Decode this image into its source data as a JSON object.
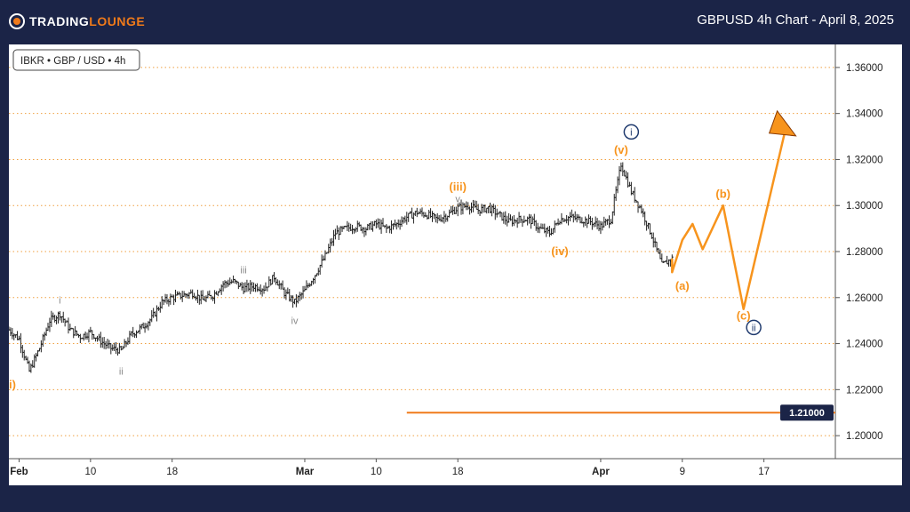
{
  "header": {
    "logo_text_main": "TRADING",
    "logo_text_accent": "LOUNGE",
    "chart_title": "GBPUSD 4h Chart - April 8, 2025"
  },
  "legend": {
    "symbol_label": "IBKR • GBP / USD • 4h"
  },
  "colors": {
    "background": "#1b2447",
    "accent_orange": "#f7941d",
    "navy": "#1f3a6e",
    "gray_label": "#8a8a8a",
    "candle": "#222222",
    "grid_dotted": "#f0a040"
  },
  "chart_data": {
    "type": "candlestick",
    "instrument": "GBPUSD",
    "timeframe": "4h",
    "ylim": [
      1.19,
      1.37
    ],
    "y_ticks": [
      "1.20000",
      "1.22000",
      "1.24000",
      "1.26000",
      "1.28000",
      "1.30000",
      "1.32000",
      "1.34000",
      "1.36000"
    ],
    "x_ticks": [
      "Feb",
      "10",
      "18",
      "Mar",
      "10",
      "18",
      "Apr",
      "9",
      "17"
    ],
    "x_tick_dates": [
      "2025-02-03",
      "2025-02-10",
      "2025-02-18",
      "2025-03-03",
      "2025-03-10",
      "2025-03-18",
      "2025-04-01",
      "2025-04-09",
      "2025-04-17"
    ],
    "xlim": [
      "2025-02-02",
      "2025-04-24"
    ],
    "grid": "horizontal dotted orange",
    "price_path": [
      [
        "2025-02-02",
        1.246
      ],
      [
        "2025-02-03",
        1.242
      ],
      [
        "2025-02-04",
        1.228
      ],
      [
        "2025-02-05",
        1.238
      ],
      [
        "2025-02-06",
        1.25
      ],
      [
        "2025-02-07",
        1.253
      ],
      [
        "2025-02-08",
        1.246
      ],
      [
        "2025-02-09",
        1.243
      ],
      [
        "2025-02-10",
        1.245
      ],
      [
        "2025-02-11",
        1.241
      ],
      [
        "2025-02-12",
        1.238
      ],
      [
        "2025-02-13",
        1.237
      ],
      [
        "2025-02-14",
        1.244
      ],
      [
        "2025-02-15",
        1.247
      ],
      [
        "2025-02-16",
        1.251
      ],
      [
        "2025-02-17",
        1.258
      ],
      [
        "2025-02-18",
        1.26
      ],
      [
        "2025-02-19",
        1.261
      ],
      [
        "2025-02-20",
        1.262
      ],
      [
        "2025-02-21",
        1.259
      ],
      [
        "2025-02-22",
        1.261
      ],
      [
        "2025-02-23",
        1.266
      ],
      [
        "2025-02-24",
        1.267
      ],
      [
        "2025-02-25",
        1.264
      ],
      [
        "2025-02-26",
        1.265
      ],
      [
        "2025-02-27",
        1.264
      ],
      [
        "2025-02-28",
        1.269
      ],
      [
        "2025-03-01",
        1.262
      ],
      [
        "2025-03-02",
        1.258
      ],
      [
        "2025-03-03",
        1.263
      ],
      [
        "2025-03-04",
        1.27
      ],
      [
        "2025-03-05",
        1.278
      ],
      [
        "2025-03-06",
        1.288
      ],
      [
        "2025-03-07",
        1.29
      ],
      [
        "2025-03-08",
        1.291
      ],
      [
        "2025-03-09",
        1.29
      ],
      [
        "2025-03-10",
        1.292
      ],
      [
        "2025-03-11",
        1.29
      ],
      [
        "2025-03-12",
        1.292
      ],
      [
        "2025-03-13",
        1.295
      ],
      [
        "2025-03-14",
        1.297
      ],
      [
        "2025-03-15",
        1.296
      ],
      [
        "2025-03-16",
        1.294
      ],
      [
        "2025-03-17",
        1.296
      ],
      [
        "2025-03-18",
        1.299
      ],
      [
        "2025-03-19",
        1.3
      ],
      [
        "2025-03-20",
        1.298
      ],
      [
        "2025-03-21",
        1.299
      ],
      [
        "2025-03-22",
        1.296
      ],
      [
        "2025-03-23",
        1.293
      ],
      [
        "2025-03-24",
        1.294
      ],
      [
        "2025-03-25",
        1.294
      ],
      [
        "2025-03-26",
        1.29
      ],
      [
        "2025-03-27",
        1.288
      ],
      [
        "2025-03-28",
        1.294
      ],
      [
        "2025-03-29",
        1.295
      ],
      [
        "2025-03-30",
        1.294
      ],
      [
        "2025-03-31",
        1.293
      ],
      [
        "2025-04-01",
        1.291
      ],
      [
        "2025-04-02",
        1.294
      ],
      [
        "2025-04-03",
        1.318
      ],
      [
        "2025-04-04",
        1.306
      ],
      [
        "2025-04-05",
        1.298
      ],
      [
        "2025-04-06",
        1.287
      ],
      [
        "2025-04-07",
        1.274
      ],
      [
        "2025-04-08",
        1.277
      ]
    ],
    "projection": {
      "color": "#f7941d",
      "path": [
        [
          "2025-04-08",
          1.277
        ],
        [
          "2025-04-08",
          1.271
        ],
        [
          "2025-04-09",
          1.285
        ],
        [
          "2025-04-10",
          1.292
        ],
        [
          "2025-04-11",
          1.281
        ],
        [
          "2025-04-13",
          1.3
        ],
        [
          "2025-04-15",
          1.255
        ],
        [
          "2025-04-19",
          1.331
        ]
      ],
      "arrow_target": [
        "2025-04-19",
        1.338
      ]
    },
    "horizontal_line": {
      "value": 1.21,
      "label": "1.21000",
      "from": "2025-03-13",
      "to": "2025-04-24"
    },
    "wave_labels": [
      {
        "text": "(ii)",
        "date": "2025-02-02",
        "price": 1.222,
        "style": "orange"
      },
      {
        "text": "i",
        "date": "2025-02-07",
        "price": 1.259,
        "style": "gray"
      },
      {
        "text": "ii",
        "date": "2025-02-13",
        "price": 1.228,
        "style": "gray"
      },
      {
        "text": "iii",
        "date": "2025-02-25",
        "price": 1.272,
        "style": "gray"
      },
      {
        "text": "iv",
        "date": "2025-03-02",
        "price": 1.25,
        "style": "gray"
      },
      {
        "text": "(iii)",
        "date": "2025-03-18",
        "price": 1.308,
        "style": "orange"
      },
      {
        "text": "v",
        "date": "2025-03-18",
        "price": 1.303,
        "style": "gray"
      },
      {
        "text": "(iv)",
        "date": "2025-03-28",
        "price": 1.28,
        "style": "orange"
      },
      {
        "text": "(v)",
        "date": "2025-04-03",
        "price": 1.324,
        "style": "orange"
      },
      {
        "text": "i",
        "date": "2025-04-04",
        "price": 1.332,
        "style": "navy-circle"
      },
      {
        "text": "(a)",
        "date": "2025-04-09",
        "price": 1.265,
        "style": "orange"
      },
      {
        "text": "(b)",
        "date": "2025-04-13",
        "price": 1.305,
        "style": "orange"
      },
      {
        "text": "(c)",
        "date": "2025-04-15",
        "price": 1.252,
        "style": "orange"
      },
      {
        "text": "ii",
        "date": "2025-04-16",
        "price": 1.247,
        "style": "navy-circle"
      }
    ]
  }
}
